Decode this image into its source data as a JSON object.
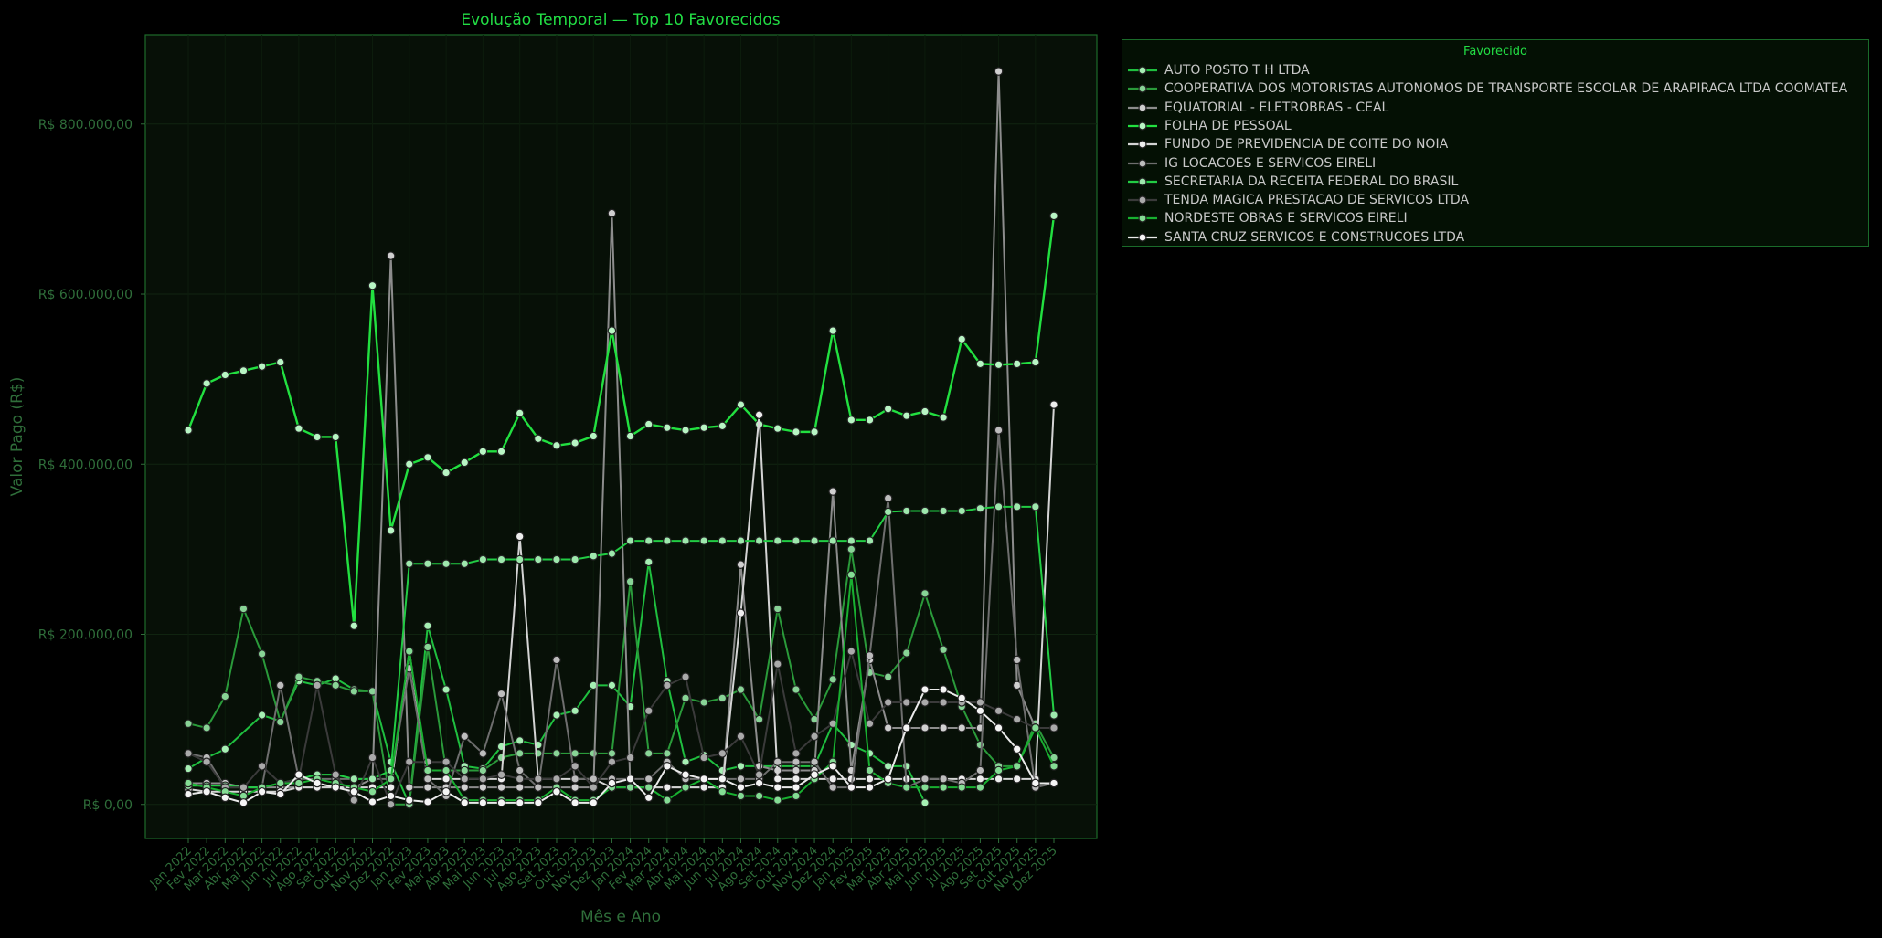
{
  "chart_data": {
    "type": "line",
    "title": "Evolução Temporal — Top 10 Favorecidos",
    "xlabel": "Mês e Ano",
    "ylabel": "Valor Pago (R$)",
    "ylim": [
      -40000,
      905000
    ],
    "yticks": [
      0,
      200000,
      400000,
      600000,
      800000
    ],
    "ytick_labels": [
      "R$ 0,00",
      "R$ 200.000,00",
      "R$ 400.000,00",
      "R$ 600.000,00",
      "R$ 800.000,00"
    ],
    "categories": [
      "Jan 2022",
      "Fev 2022",
      "Mar 2022",
      "Abr 2022",
      "Mai 2022",
      "Jun 2022",
      "Jul 2022",
      "Ago 2022",
      "Set 2022",
      "Out 2022",
      "Nov 2022",
      "Dez 2022",
      "Jan 2023",
      "Fev 2023",
      "Mar 2023",
      "Abr 2023",
      "Mai 2023",
      "Jun 2023",
      "Jul 2023",
      "Ago 2023",
      "Set 2023",
      "Out 2023",
      "Nov 2023",
      "Dez 2023",
      "Jan 2024",
      "Fev 2024",
      "Mar 2024",
      "Abr 2024",
      "Mai 2024",
      "Jun 2024",
      "Jul 2024",
      "Ago 2024",
      "Set 2024",
      "Out 2024",
      "Nov 2024",
      "Dez 2024",
      "Jan 2025",
      "Fev 2025",
      "Mar 2025",
      "Abr 2025",
      "Mai 2025",
      "Jun 2025",
      "Jul 2025",
      "Ago 2025",
      "Set 2025",
      "Out 2025",
      "Nov 2025",
      "Dez 2025"
    ],
    "tick_labels": [
      "Jan 2022",
      "Fev 2022",
      "Mar 2022",
      "Abr 2022",
      "Mai 2022",
      "Jun 2022",
      "Jul 2022",
      "Ago 2022",
      "Set 2022",
      "Out 2022",
      "Nov 2022",
      "Dez 2022",
      "Jan 2023",
      "Fev 2023",
      "Mar 2023",
      "Abr 2023",
      "Mai 2023",
      "Jun 2023",
      "Jul 2023",
      "Ago 2023",
      "Set 2023",
      "Out 2023",
      "Nov 2023",
      "Dez 2023",
      "Jan 2024",
      "Fev 2024",
      "Mar 2024",
      "Abr 2024",
      "Mai 2024",
      "Jun 2024",
      "Jul 2024",
      "Ago 2024",
      "Set 2024",
      "Out 2024",
      "Nov 2024",
      "Dez 2024",
      "Jan 2025",
      "Fev 2025",
      "Mar 2025",
      "Abr 2025",
      "Mai 2025",
      "Jun 2025",
      "Jul 2025",
      "Ago 2025",
      "Set 2025",
      "Out 2025",
      "Nov 2025",
      "Dez 2025"
    ],
    "legend_title": "Favorecido",
    "legend_position": "outside-top-right",
    "series": [
      {
        "name": "AUTO POSTO T H LTDA",
        "color": "#1fbf3f",
        "marker_fill": "#a6f0b4",
        "width": 2,
        "x": [
          0,
          1,
          2,
          4,
          5,
          6,
          7,
          8,
          9,
          10,
          11,
          12,
          13,
          14,
          15,
          16,
          17,
          18,
          19,
          20,
          21,
          22,
          23,
          24,
          25,
          26,
          27,
          28,
          29,
          30,
          31,
          32,
          33,
          34,
          35,
          36,
          37,
          38,
          39,
          40
        ],
        "y": [
          42000,
          55000,
          65000,
          105000,
          98000,
          145000,
          140000,
          148000,
          135000,
          133000,
          50000,
          0,
          210000,
          135000,
          45000,
          42000,
          68000,
          75000,
          70000,
          105000,
          110000,
          140000,
          140000,
          115000,
          285000,
          145000,
          50000,
          58000,
          40000,
          45000,
          45000,
          45000,
          45000,
          45000,
          95000,
          70000,
          60000,
          45000,
          45000,
          2000
        ]
      },
      {
        "name": "COOPERATIVA DOS MOTORISTAS AUTONOMOS DE TRANSPORTE ESCOLAR DE ARAPIRACA LTDA COOMATEA",
        "color": "#2a9a3a",
        "marker_fill": "#88d496",
        "width": 2,
        "x": [
          0,
          1,
          2,
          3,
          4,
          5,
          6,
          7,
          8,
          9,
          10,
          11,
          12,
          13,
          14,
          15,
          16,
          17,
          18,
          19,
          20,
          21,
          22,
          23,
          24,
          25,
          26,
          27,
          28,
          29,
          30,
          31,
          32,
          33,
          34,
          35,
          36,
          37,
          38,
          39,
          40,
          41,
          42,
          43,
          44,
          45,
          46,
          47
        ],
        "y": [
          95000,
          90000,
          127000,
          230000,
          177000,
          97000,
          150000,
          145000,
          140000,
          133000,
          133000,
          0,
          0,
          185000,
          40000,
          40000,
          40000,
          55000,
          60000,
          60000,
          60000,
          60000,
          60000,
          60000,
          262000,
          60000,
          60000,
          125000,
          120000,
          125000,
          135000,
          100000,
          230000,
          135000,
          100000,
          147000,
          300000,
          155000,
          150000,
          178000,
          248000,
          182000,
          115000,
          70000,
          45000,
          45000,
          95000,
          55000
        ]
      },
      {
        "name": "EQUATORIAL - ELETROBRAS - CEAL",
        "color": "#8c8c8c",
        "marker_fill": "#d0d0d0",
        "width": 2,
        "x": [
          0,
          1,
          2,
          3,
          4,
          5,
          6,
          7,
          8,
          9,
          10,
          11,
          12,
          13,
          14,
          15,
          16,
          17,
          18,
          19,
          20,
          21,
          22,
          23,
          24,
          25,
          26,
          27,
          28,
          29,
          30,
          31,
          32,
          33,
          34,
          35,
          36,
          37,
          38,
          39,
          40,
          41,
          42,
          43,
          44,
          45,
          46,
          47
        ],
        "y": [
          25000,
          25000,
          25000,
          20000,
          20000,
          20000,
          20000,
          20000,
          20000,
          20000,
          30000,
          645000,
          20000,
          20000,
          20000,
          20000,
          20000,
          20000,
          20000,
          20000,
          20000,
          20000,
          20000,
          695000,
          20000,
          20000,
          20000,
          20000,
          20000,
          20000,
          282000,
          45000,
          40000,
          40000,
          40000,
          368000,
          40000,
          170000,
          90000,
          90000,
          90000,
          90000,
          90000,
          90000,
          862000,
          140000,
          90000,
          90000
        ]
      },
      {
        "name": "FOLHA DE PESSOAL",
        "color": "#22e040",
        "marker_fill": "#b8f5c4",
        "width": 2.4,
        "x": [
          0,
          1,
          2,
          3,
          4,
          5,
          6,
          7,
          8,
          9,
          10,
          11,
          12,
          13,
          14,
          15,
          16,
          17,
          18,
          19,
          20,
          21,
          22,
          23,
          24,
          25,
          26,
          27,
          28,
          29,
          30,
          31,
          32,
          33,
          34,
          35,
          36,
          37,
          38,
          39,
          40,
          41,
          42,
          43,
          44,
          45,
          46,
          47
        ],
        "y": [
          440000,
          495000,
          505000,
          510000,
          515000,
          520000,
          442000,
          432000,
          432000,
          210000,
          610000,
          322000,
          400000,
          408000,
          390000,
          402000,
          415000,
          415000,
          460000,
          430000,
          422000,
          425000,
          433000,
          557000,
          433000,
          447000,
          443000,
          440000,
          443000,
          445000,
          470000,
          447000,
          442000,
          438000,
          438000,
          557000,
          452000,
          452000,
          465000,
          457000,
          462000,
          455000,
          547000,
          518000,
          517000,
          518000,
          520000,
          692000
        ]
      },
      {
        "name": "FUNDO DE PREVIDENCIA DE COITE DO NOIA",
        "color": "#d4d4d4",
        "marker_fill": "#eeeeee",
        "width": 2,
        "x": [
          0,
          1,
          2,
          3,
          4,
          5,
          6,
          7,
          8,
          9,
          10,
          11,
          12,
          13,
          14,
          15,
          16,
          17,
          18,
          19,
          20,
          21,
          22,
          23,
          24,
          25,
          26,
          27,
          28,
          29,
          30,
          31,
          32,
          33,
          34,
          35,
          36,
          37,
          38,
          39,
          40,
          41,
          42,
          43,
          44,
          45,
          46,
          47
        ],
        "y": [
          18000,
          15000,
          15000,
          15000,
          15000,
          15000,
          20000,
          20000,
          20000,
          20000,
          20000,
          20000,
          180000,
          30000,
          30000,
          30000,
          30000,
          30000,
          315000,
          30000,
          30000,
          30000,
          30000,
          20000,
          20000,
          20000,
          20000,
          20000,
          20000,
          20000,
          225000,
          458000,
          30000,
          30000,
          30000,
          30000,
          30000,
          30000,
          30000,
          30000,
          30000,
          30000,
          30000,
          30000,
          30000,
          30000,
          30000,
          470000
        ]
      },
      {
        "name": "IG LOCACOES E SERVICOS EIRELI",
        "color": "#6e6e6e",
        "marker_fill": "#bdbdbd",
        "width": 2,
        "x": [
          0,
          1,
          2,
          3,
          4,
          5,
          6,
          7,
          8,
          9,
          10,
          11,
          12,
          13,
          14,
          15,
          16,
          17,
          18,
          19,
          20,
          21,
          22,
          23,
          24,
          25,
          26,
          27,
          28,
          29,
          30,
          31,
          32,
          33,
          34,
          35,
          36,
          37,
          38,
          39,
          40,
          41,
          42,
          43,
          44,
          45,
          46,
          47
        ],
        "y": [
          60000,
          55000,
          20000,
          20000,
          20000,
          140000,
          30000,
          30000,
          30000,
          30000,
          30000,
          30000,
          160000,
          30000,
          10000,
          80000,
          60000,
          130000,
          40000,
          20000,
          170000,
          30000,
          30000,
          30000,
          30000,
          30000,
          50000,
          30000,
          30000,
          30000,
          30000,
          30000,
          50000,
          50000,
          50000,
          20000,
          20000,
          175000,
          360000,
          20000,
          30000,
          30000,
          25000,
          40000,
          440000,
          170000,
          20000,
          25000
        ]
      },
      {
        "name": "SECRETARIA DA RECEITA FEDERAL DO BRASIL",
        "color": "#22cc44",
        "marker_fill": "#9ee8ad",
        "width": 2,
        "x": [
          0,
          1,
          2,
          3,
          4,
          5,
          6,
          7,
          8,
          9,
          10,
          11,
          12,
          13,
          14,
          15,
          16,
          17,
          18,
          19,
          20,
          21,
          22,
          23,
          24,
          25,
          26,
          27,
          28,
          29,
          30,
          31,
          32,
          33,
          34,
          35,
          36,
          37,
          38,
          39,
          40,
          41,
          42,
          43,
          44,
          45,
          46,
          47
        ],
        "y": [
          22000,
          22000,
          22000,
          20000,
          20000,
          25000,
          30000,
          35000,
          35000,
          30000,
          30000,
          40000,
          283000,
          283000,
          283000,
          283000,
          288000,
          288000,
          288000,
          288000,
          288000,
          288000,
          292000,
          295000,
          310000,
          310000,
          310000,
          310000,
          310000,
          310000,
          310000,
          310000,
          310000,
          310000,
          310000,
          310000,
          310000,
          310000,
          344000,
          345000,
          345000,
          345000,
          345000,
          348000,
          350000,
          350000,
          350000,
          105000
        ]
      },
      {
        "name": "TENDA MAGICA PRESTACAO DE SERVICOS LTDA",
        "color": "#3a3a3a",
        "marker_fill": "#aaaaaa",
        "width": 2,
        "x": [
          0,
          1,
          2,
          3,
          4,
          5,
          6,
          7,
          8,
          9,
          10,
          11,
          12,
          13,
          14,
          15,
          16,
          17,
          18,
          19,
          20,
          21,
          22,
          23,
          24,
          25,
          26,
          27,
          28,
          29,
          30,
          31,
          32,
          33,
          34,
          35,
          36,
          37,
          38,
          39,
          40,
          41,
          42,
          43,
          44,
          45,
          46,
          47
        ],
        "y": [
          60000,
          50000,
          20000,
          20000,
          45000,
          25000,
          30000,
          140000,
          35000,
          5000,
          55000,
          0,
          50000,
          50000,
          50000,
          30000,
          30000,
          35000,
          30000,
          30000,
          30000,
          45000,
          20000,
          50000,
          55000,
          110000,
          140000,
          150000,
          55000,
          60000,
          80000,
          35000,
          165000,
          60000,
          80000,
          95000,
          180000,
          95000,
          120000,
          120000,
          120000,
          120000,
          120000,
          120000,
          110000,
          100000,
          90000,
          90000
        ]
      },
      {
        "name": "NORDESTE OBRAS E SERVICOS EIRELI",
        "color": "#18b030",
        "marker_fill": "#84dc94",
        "width": 2,
        "x": [
          0,
          1,
          2,
          3,
          4,
          5,
          6,
          7,
          8,
          9,
          10,
          11,
          12,
          13,
          14,
          15,
          16,
          17,
          18,
          19,
          20,
          21,
          22,
          23,
          24,
          25,
          26,
          27,
          28,
          29,
          30,
          31,
          32,
          33,
          34,
          35,
          36,
          37,
          38,
          39,
          40,
          41,
          42,
          43,
          44,
          45,
          46,
          47
        ],
        "y": [
          25000,
          20000,
          15000,
          10000,
          20000,
          25000,
          25000,
          30000,
          25000,
          20000,
          15000,
          30000,
          180000,
          40000,
          40000,
          5000,
          5000,
          5000,
          5000,
          5000,
          20000,
          5000,
          5000,
          20000,
          20000,
          20000,
          5000,
          20000,
          30000,
          15000,
          10000,
          10000,
          5000,
          10000,
          30000,
          50000,
          270000,
          40000,
          25000,
          20000,
          20000,
          20000,
          20000,
          20000,
          40000,
          45000,
          90000,
          45000
        ]
      },
      {
        "name": "SANTA CRUZ SERVICOS E CONSTRUCOES LTDA",
        "color": "#eaeaea",
        "marker_fill": "#f5f5f5",
        "width": 2,
        "x": [
          0,
          1,
          2,
          3,
          4,
          5,
          6,
          7,
          8,
          9,
          10,
          11,
          12,
          13,
          14,
          15,
          16,
          17,
          18,
          19,
          20,
          21,
          22,
          23,
          24,
          25,
          26,
          27,
          28,
          29,
          30,
          31,
          32,
          33,
          34,
          35,
          36,
          37,
          38,
          39,
          40,
          41,
          42,
          43,
          44,
          45,
          46,
          47
        ],
        "y": [
          12000,
          15000,
          8000,
          2000,
          15000,
          12000,
          35000,
          25000,
          20000,
          15000,
          3000,
          10000,
          5000,
          3000,
          15000,
          2000,
          2000,
          2000,
          2000,
          2000,
          15000,
          2000,
          2000,
          25000,
          30000,
          8000,
          45000,
          35000,
          30000,
          30000,
          20000,
          25000,
          20000,
          20000,
          35000,
          45000,
          20000,
          20000,
          30000,
          90000,
          135000,
          135000,
          125000,
          110000,
          90000,
          65000,
          25000,
          25000
        ]
      }
    ]
  }
}
